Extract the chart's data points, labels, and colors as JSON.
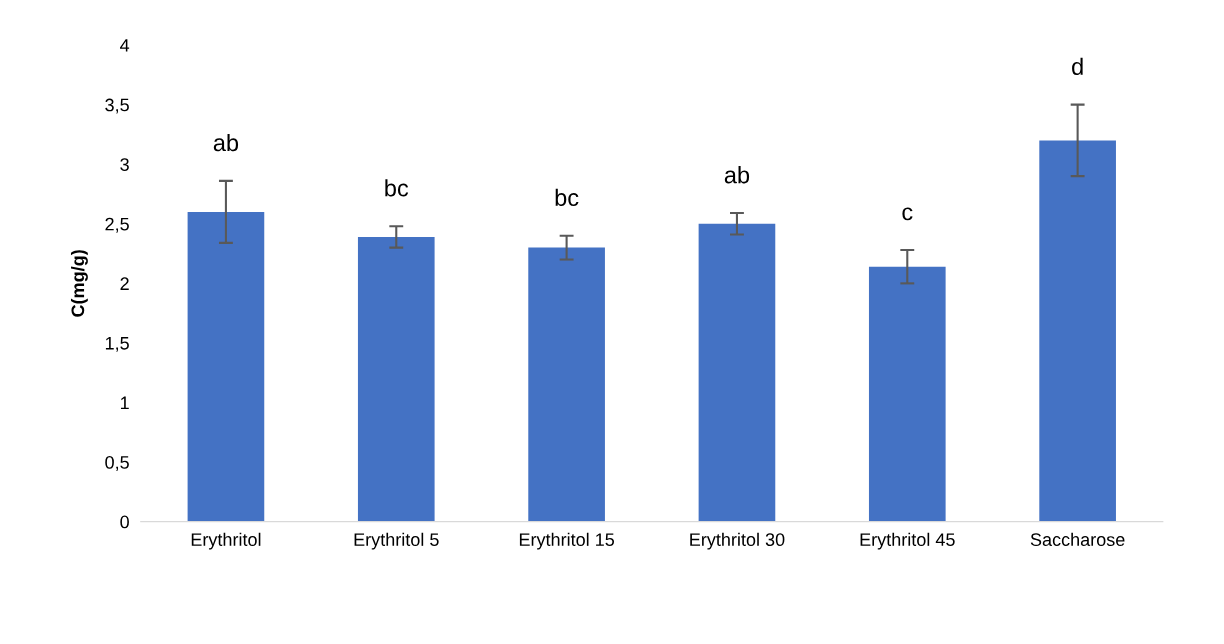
{
  "chart_data": {
    "type": "bar",
    "ylabel": "C(mg/g)",
    "categories": [
      "Erythritol",
      "Erythritol 5",
      "Erythritol 15",
      "Erythritol 30",
      "Erythritol 45",
      "Saccharose"
    ],
    "values": [
      2.6,
      2.39,
      2.3,
      2.5,
      2.14,
      3.2
    ],
    "errors": [
      0.26,
      0.09,
      0.1,
      0.09,
      0.14,
      0.3
    ],
    "color": "#4472c4",
    "ylim": [
      0,
      4
    ],
    "yticks": [
      0,
      {
        "value": 0.5,
        "label": "0,5"
      },
      1,
      {
        "value": 1.5,
        "label": "1,5"
      },
      2,
      {
        "value": 2.5,
        "label": "2,5"
      },
      3,
      {
        "value": 3.5,
        "label": "3,5"
      },
      4
    ],
    "grid": false,
    "annotations": [
      "ab",
      "bc",
      "bc",
      "ab",
      "c",
      "d"
    ]
  }
}
